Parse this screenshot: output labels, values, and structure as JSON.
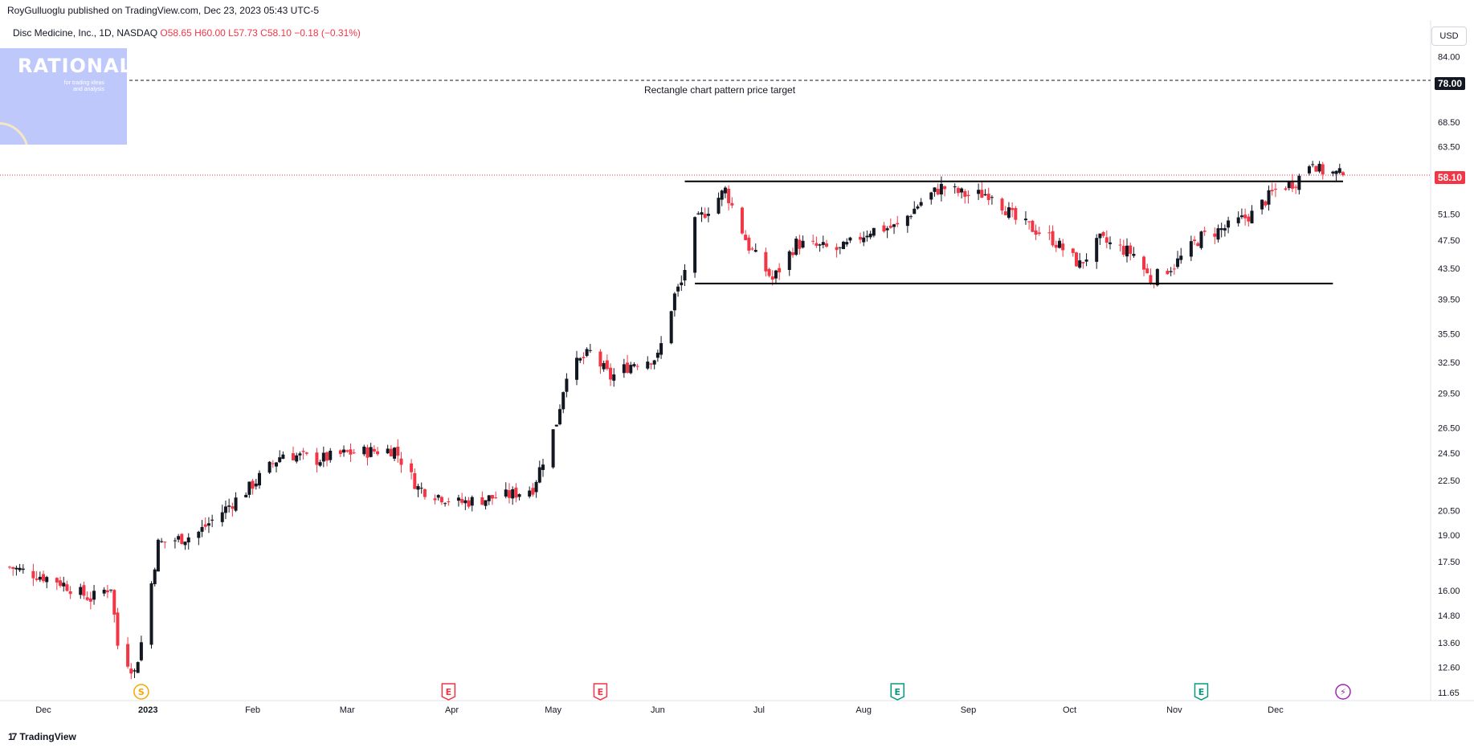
{
  "header": {
    "published": "RoyGulluoglu published on TradingView.com, Dec 23, 2023 05:43 UTC-5"
  },
  "legend": {
    "symbol": "Disc Medicine, Inc., 1D, NASDAQ",
    "ohlc": "O58.65 H60.00 L57.73 C58.10 −0.18 (−0.31%)"
  },
  "watermark": {
    "title": "RATIONALE",
    "tagline": "for trading ideas and analysis"
  },
  "currency": "USD",
  "price_flags": {
    "target": "78.00",
    "last": "58.10"
  },
  "annotation": "Rectangle chart pattern price target",
  "footer": {
    "logo_mark": "17",
    "brand": "TradingView"
  },
  "colors": {
    "up": "#131722",
    "down": "#f23645",
    "background": "#ffffff",
    "last_price_line": "#f23645",
    "earnings_badge": "#f23645",
    "earnings_badge_green": "#089981",
    "split_badge": "#f7a600",
    "dividend_badge": "#9c27b0"
  },
  "chart_data": {
    "type": "candlestick",
    "symbol": "Disc Medicine, Inc.",
    "interval": "1D",
    "exchange": "NASDAQ",
    "y_scale": "log",
    "ylim": [
      11.65,
      90
    ],
    "y_ticks": [
      "84.00",
      "78.00",
      "68.50",
      "63.50",
      "58.10",
      "51.50",
      "47.50",
      "43.50",
      "39.50",
      "35.50",
      "32.50",
      "29.50",
      "26.50",
      "24.50",
      "22.50",
      "20.50",
      "19.00",
      "17.50",
      "16.00",
      "14.80",
      "13.60",
      "12.60",
      "11.65"
    ],
    "y_tick_values": [
      84.0,
      78.0,
      68.5,
      63.5,
      58.1,
      51.5,
      47.5,
      43.5,
      39.5,
      35.5,
      32.5,
      29.5,
      26.5,
      24.5,
      22.5,
      20.5,
      19.0,
      17.5,
      16.0,
      14.8,
      13.6,
      12.6,
      11.65
    ],
    "x_ticks": [
      {
        "label": "Dec",
        "date": "2022-12-01"
      },
      {
        "label": "2023",
        "date": "2023-01-01"
      },
      {
        "label": "Feb",
        "date": "2023-02-01"
      },
      {
        "label": "Mar",
        "date": "2023-03-01"
      },
      {
        "label": "Apr",
        "date": "2023-04-01"
      },
      {
        "label": "May",
        "date": "2023-05-01"
      },
      {
        "label": "Jun",
        "date": "2023-06-01"
      },
      {
        "label": "Jul",
        "date": "2023-07-01"
      },
      {
        "label": "Aug",
        "date": "2023-08-01"
      },
      {
        "label": "Sep",
        "date": "2023-09-01"
      },
      {
        "label": "Oct",
        "date": "2023-10-01"
      },
      {
        "label": "Nov",
        "date": "2023-11-01"
      },
      {
        "label": "Dec",
        "date": "2023-12-01"
      }
    ],
    "x_range": [
      "2022-11-21",
      "2023-12-31"
    ],
    "last_price": 58.1,
    "target_price": 78.0,
    "rectangle_pattern": {
      "top": {
        "from": "2023-06-09",
        "to": "2023-12-21",
        "price": 57.0
      },
      "bottom": {
        "from": "2023-06-12",
        "to": "2023-12-18",
        "price": 41.5
      }
    },
    "events": [
      {
        "type": "split",
        "letter": "S",
        "date": "2022-12-30"
      },
      {
        "type": "earnings",
        "letter": "E",
        "date": "2023-03-31",
        "color": "red"
      },
      {
        "type": "earnings",
        "letter": "E",
        "date": "2023-05-15",
        "color": "red"
      },
      {
        "type": "earnings",
        "letter": "E",
        "date": "2023-08-11",
        "color": "green"
      },
      {
        "type": "earnings",
        "letter": "E",
        "date": "2023-11-09",
        "color": "green"
      },
      {
        "type": "dividend",
        "letter": "⚡",
        "date": "2023-12-21"
      }
    ],
    "price_path": [
      {
        "date": "2022-11-21",
        "close": 17.2
      },
      {
        "date": "2022-12-05",
        "close": 16.5
      },
      {
        "date": "2022-12-15",
        "close": 15.6
      },
      {
        "date": "2022-12-21",
        "close": 16.2
      },
      {
        "date": "2022-12-23",
        "close": 13.5
      },
      {
        "date": "2022-12-28",
        "close": 12.4
      },
      {
        "date": "2022-12-30",
        "close": 13.6
      },
      {
        "date": "2023-01-04",
        "close": 18.5
      },
      {
        "date": "2023-01-15",
        "close": 19.0
      },
      {
        "date": "2023-01-31",
        "close": 22.0
      },
      {
        "date": "2023-02-10",
        "close": 24.5
      },
      {
        "date": "2023-02-20",
        "close": 24.0
      },
      {
        "date": "2023-03-01",
        "close": 24.5
      },
      {
        "date": "2023-03-15",
        "close": 24.8
      },
      {
        "date": "2023-03-22",
        "close": 22.0
      },
      {
        "date": "2023-04-03",
        "close": 21.0
      },
      {
        "date": "2023-04-18",
        "close": 21.5
      },
      {
        "date": "2023-04-25",
        "close": 22.0
      },
      {
        "date": "2023-05-02",
        "close": 27.0
      },
      {
        "date": "2023-05-05",
        "close": 31.5
      },
      {
        "date": "2023-05-12",
        "close": 33.5
      },
      {
        "date": "2023-05-18",
        "close": 31.0
      },
      {
        "date": "2023-05-25",
        "close": 32.5
      },
      {
        "date": "2023-06-01",
        "close": 33.0
      },
      {
        "date": "2023-06-06",
        "close": 40.0
      },
      {
        "date": "2023-06-08",
        "close": 41.5
      },
      {
        "date": "2023-06-12",
        "close": 50.0
      },
      {
        "date": "2023-06-21",
        "close": 55.5
      },
      {
        "date": "2023-06-28",
        "close": 46.5
      },
      {
        "date": "2023-07-05",
        "close": 42.0
      },
      {
        "date": "2023-07-12",
        "close": 47.0
      },
      {
        "date": "2023-07-25",
        "close": 46.0
      },
      {
        "date": "2023-08-03",
        "close": 49.0
      },
      {
        "date": "2023-08-11",
        "close": 49.5
      },
      {
        "date": "2023-08-18",
        "close": 53.5
      },
      {
        "date": "2023-08-24",
        "close": 56.0
      },
      {
        "date": "2023-09-01",
        "close": 54.5
      },
      {
        "date": "2023-09-08",
        "close": 55.0
      },
      {
        "date": "2023-09-15",
        "close": 50.5
      },
      {
        "date": "2023-09-25",
        "close": 48.0
      },
      {
        "date": "2023-10-04",
        "close": 44.0
      },
      {
        "date": "2023-10-10",
        "close": 47.5
      },
      {
        "date": "2023-10-20",
        "close": 45.5
      },
      {
        "date": "2023-10-25",
        "close": 42.0
      },
      {
        "date": "2023-11-01",
        "close": 44.0
      },
      {
        "date": "2023-11-09",
        "close": 48.0
      },
      {
        "date": "2023-11-17",
        "close": 49.5
      },
      {
        "date": "2023-11-24",
        "close": 51.5
      },
      {
        "date": "2023-12-01",
        "close": 55.5
      },
      {
        "date": "2023-12-07",
        "close": 57.0
      },
      {
        "date": "2023-12-12",
        "close": 61.0
      },
      {
        "date": "2023-12-14",
        "close": 59.0
      },
      {
        "date": "2023-12-21",
        "close": 58.1
      }
    ]
  }
}
